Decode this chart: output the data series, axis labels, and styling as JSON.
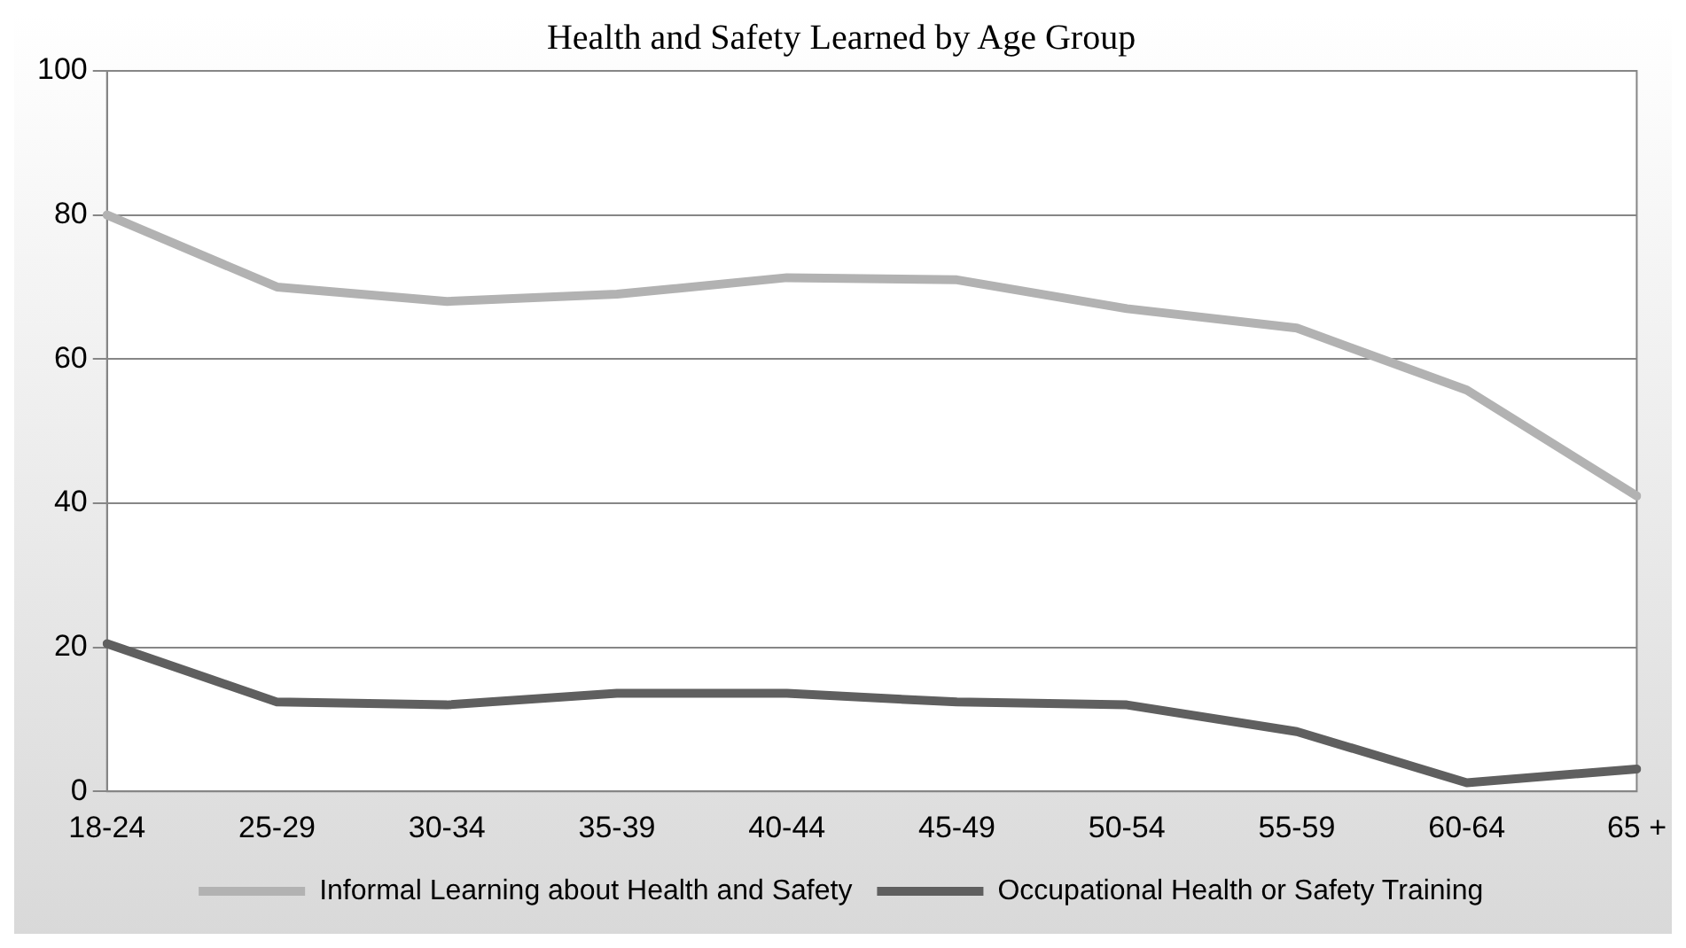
{
  "chart_data": {
    "type": "line",
    "title": "Health and Safety Learned by Age Group",
    "categories": [
      "18-24",
      "25-29",
      "30-34",
      "35-39",
      "40-44",
      "45-49",
      "50-54",
      "55-59",
      "60-64",
      "65 +"
    ],
    "series": [
      {
        "name": "Informal Learning about Health and Safety",
        "color": "#b2b2b2",
        "values": [
          80,
          70,
          68,
          69,
          71.3,
          71,
          67,
          64.3,
          55.7,
          41
        ]
      },
      {
        "name": "Occupational Health or Safety Training",
        "color": "#5f5f5f",
        "values": [
          20.5,
          12.4,
          12,
          13.6,
          13.6,
          12.4,
          12,
          8.3,
          1.2,
          3.1
        ]
      }
    ],
    "ylim": [
      0,
      100
    ],
    "yticks": [
      0,
      20,
      40,
      60,
      80,
      100
    ],
    "grid": "y",
    "legend": "bottom",
    "marker": "none",
    "line_style": "solid"
  }
}
